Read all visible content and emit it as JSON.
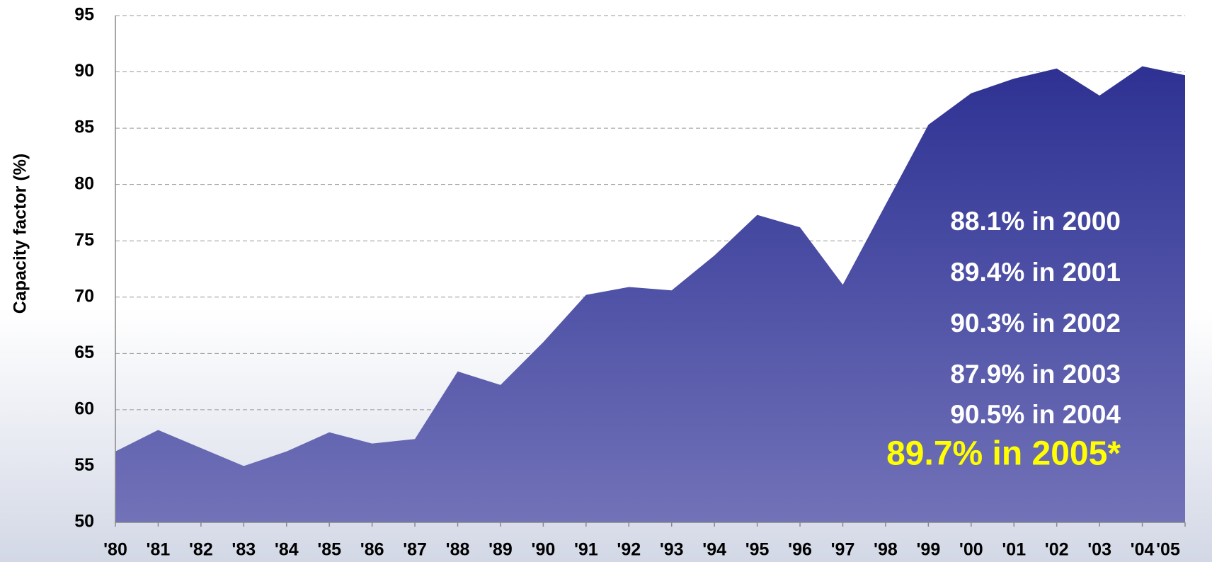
{
  "chart_data": {
    "type": "area",
    "y_label": "Capacity factor (%)",
    "categories": [
      "'80",
      "'81",
      "'82",
      "'83",
      "'84",
      "'85",
      "'86",
      "'87",
      "'88",
      "'89",
      "'90",
      "'91",
      "'92",
      "'93",
      "'94",
      "'95",
      "'96",
      "'97",
      "'98",
      "'99",
      "'00",
      "'01",
      "'02",
      "'03",
      "'04",
      "'05"
    ],
    "values": [
      56.3,
      58.2,
      56.6,
      55.0,
      56.3,
      58.0,
      57.0,
      57.4,
      63.4,
      62.2,
      66.0,
      70.2,
      70.9,
      70.6,
      73.7,
      77.3,
      76.2,
      71.1,
      78.2,
      85.3,
      88.1,
      89.4,
      90.3,
      87.9,
      90.5,
      89.7
    ],
    "ylim": [
      50,
      95
    ],
    "yticks": [
      50,
      55,
      60,
      65,
      70,
      75,
      80,
      85,
      90,
      95
    ],
    "grid": true,
    "annotations": [
      "88.1% in 2000",
      "89.4% in 2001",
      "90.3% in 2002",
      "87.9% in 2003",
      "90.5% in 2004",
      "89.7% in 2005*"
    ]
  }
}
